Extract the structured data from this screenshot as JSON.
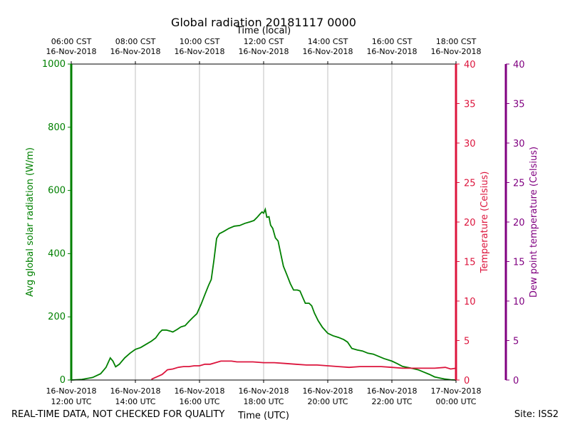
{
  "chart_data": {
    "type": "line",
    "title": "Global radiation 20181117 0000",
    "xlabel_top": "Time (local)",
    "xlabel_bottom": "Time (UTC)",
    "x_range": [
      "2018-11-16T12:00",
      "2018-11-17T00:00"
    ],
    "x_ticks_utc": [
      {
        "x": "2018-11-16T12:00",
        "line1": "16-Nov-2018",
        "line2": "12:00 UTC"
      },
      {
        "x": "2018-11-16T14:00",
        "line1": "16-Nov-2018",
        "line2": "14:00 UTC"
      },
      {
        "x": "2018-11-16T16:00",
        "line1": "16-Nov-2018",
        "line2": "16:00 UTC"
      },
      {
        "x": "2018-11-16T18:00",
        "line1": "16-Nov-2018",
        "line2": "18:00 UTC"
      },
      {
        "x": "2018-11-16T20:00",
        "line1": "16-Nov-2018",
        "line2": "20:00 UTC"
      },
      {
        "x": "2018-11-16T22:00",
        "line1": "16-Nov-2018",
        "line2": "22:00 UTC"
      },
      {
        "x": "2018-11-17T00:00",
        "line1": "17-Nov-2018",
        "line2": "00:00 UTC"
      }
    ],
    "x_ticks_local": [
      {
        "x": "2018-11-16T12:00",
        "line1": "06:00 CST",
        "line2": "16-Nov-2018"
      },
      {
        "x": "2018-11-16T14:00",
        "line1": "08:00 CST",
        "line2": "16-Nov-2018"
      },
      {
        "x": "2018-11-16T16:00",
        "line1": "10:00 CST",
        "line2": "16-Nov-2018"
      },
      {
        "x": "2018-11-16T18:00",
        "line1": "12:00 CST",
        "line2": "16-Nov-2018"
      },
      {
        "x": "2018-11-16T20:00",
        "line1": "14:00 CST",
        "line2": "16-Nov-2018"
      },
      {
        "x": "2018-11-16T22:00",
        "line1": "16:00 CST",
        "line2": "16-Nov-2018"
      },
      {
        "x": "2018-11-17T00:00",
        "line1": "18:00 CST",
        "line2": "16-Nov-2018"
      }
    ],
    "grid": "vertical",
    "axes": {
      "radiation": {
        "label": "Avg global solar radiation (W/m)",
        "ylim": [
          0,
          1000
        ],
        "ticks": [
          0,
          200,
          400,
          600,
          800,
          1000
        ],
        "color": "#008000"
      },
      "temperature": {
        "label": "Temperature (Celsius)",
        "ylim": [
          0,
          40
        ],
        "ticks": [
          0,
          5,
          10,
          15,
          20,
          25,
          30,
          35,
          40
        ],
        "color": "#dc143c"
      },
      "dewpoint": {
        "label": "Dew point temperature (Celsius)",
        "ylim": [
          0,
          40
        ],
        "ticks": [
          0,
          5,
          10,
          15,
          20,
          25,
          30,
          35,
          40
        ],
        "color": "#800080"
      }
    },
    "series": [
      {
        "axis": "radiation",
        "color": "#008000",
        "points": [
          [
            "2018-11-16T12:00",
            0
          ],
          [
            "2018-11-16T12:20",
            2
          ],
          [
            "2018-11-16T12:40",
            8
          ],
          [
            "2018-11-16T12:55",
            20
          ],
          [
            "2018-11-16T13:05",
            40
          ],
          [
            "2018-11-16T13:13",
            70
          ],
          [
            "2018-11-16T13:18",
            60
          ],
          [
            "2018-11-16T13:23",
            42
          ],
          [
            "2018-11-16T13:30",
            50
          ],
          [
            "2018-11-16T13:40",
            70
          ],
          [
            "2018-11-16T13:50",
            85
          ],
          [
            "2018-11-16T14:00",
            97
          ],
          [
            "2018-11-16T14:10",
            103
          ],
          [
            "2018-11-16T14:20",
            113
          ],
          [
            "2018-11-16T14:30",
            123
          ],
          [
            "2018-11-16T14:38",
            133
          ],
          [
            "2018-11-16T14:45",
            150
          ],
          [
            "2018-11-16T14:50",
            158
          ],
          [
            "2018-11-16T14:58",
            158
          ],
          [
            "2018-11-16T15:05",
            155
          ],
          [
            "2018-11-16T15:10",
            152
          ],
          [
            "2018-11-16T15:18",
            160
          ],
          [
            "2018-11-16T15:25",
            168
          ],
          [
            "2018-11-16T15:33",
            172
          ],
          [
            "2018-11-16T15:40",
            185
          ],
          [
            "2018-11-16T15:47",
            197
          ],
          [
            "2018-11-16T15:55",
            210
          ],
          [
            "2018-11-16T16:03",
            240
          ],
          [
            "2018-11-16T16:10",
            270
          ],
          [
            "2018-11-16T16:17",
            300
          ],
          [
            "2018-11-16T16:22",
            318
          ],
          [
            "2018-11-16T16:27",
            380
          ],
          [
            "2018-11-16T16:32",
            448
          ],
          [
            "2018-11-16T16:37",
            463
          ],
          [
            "2018-11-16T16:45",
            470
          ],
          [
            "2018-11-16T16:55",
            480
          ],
          [
            "2018-11-16T17:05",
            487
          ],
          [
            "2018-11-16T17:15",
            489
          ],
          [
            "2018-11-16T17:25",
            496
          ],
          [
            "2018-11-16T17:35",
            501
          ],
          [
            "2018-11-16T17:42",
            505
          ],
          [
            "2018-11-16T17:48",
            515
          ],
          [
            "2018-11-16T17:53",
            525
          ],
          [
            "2018-11-16T17:57",
            532
          ],
          [
            "2018-11-16T18:00",
            528
          ],
          [
            "2018-11-16T18:03",
            540
          ],
          [
            "2018-11-16T18:06",
            515
          ],
          [
            "2018-11-16T18:10",
            517
          ],
          [
            "2018-11-16T18:13",
            490
          ],
          [
            "2018-11-16T18:17",
            480
          ],
          [
            "2018-11-16T18:22",
            450
          ],
          [
            "2018-11-16T18:27",
            440
          ],
          [
            "2018-11-16T18:32",
            400
          ],
          [
            "2018-11-16T18:37",
            360
          ],
          [
            "2018-11-16T18:43",
            335
          ],
          [
            "2018-11-16T18:50",
            305
          ],
          [
            "2018-11-16T18:56",
            285
          ],
          [
            "2018-11-16T19:03",
            285
          ],
          [
            "2018-11-16T19:08",
            282
          ],
          [
            "2018-11-16T19:13",
            262
          ],
          [
            "2018-11-16T19:18",
            243
          ],
          [
            "2018-11-16T19:25",
            243
          ],
          [
            "2018-11-16T19:30",
            235
          ],
          [
            "2018-11-16T19:35",
            212
          ],
          [
            "2018-11-16T19:42",
            188
          ],
          [
            "2018-11-16T19:50",
            167
          ],
          [
            "2018-11-16T20:00",
            148
          ],
          [
            "2018-11-16T20:10",
            140
          ],
          [
            "2018-11-16T20:20",
            135
          ],
          [
            "2018-11-16T20:30",
            128
          ],
          [
            "2018-11-16T20:37",
            120
          ],
          [
            "2018-11-16T20:45",
            100
          ],
          [
            "2018-11-16T20:55",
            95
          ],
          [
            "2018-11-16T21:05",
            92
          ],
          [
            "2018-11-16T21:15",
            85
          ],
          [
            "2018-11-16T21:25",
            82
          ],
          [
            "2018-11-16T21:35",
            75
          ],
          [
            "2018-11-16T21:45",
            68
          ],
          [
            "2018-11-16T22:00",
            60
          ],
          [
            "2018-11-16T22:10",
            52
          ],
          [
            "2018-11-16T22:20",
            43
          ],
          [
            "2018-11-16T22:35",
            38
          ],
          [
            "2018-11-16T22:50",
            32
          ],
          [
            "2018-11-16T23:00",
            25
          ],
          [
            "2018-11-16T23:10",
            18
          ],
          [
            "2018-11-16T23:20",
            10
          ],
          [
            "2018-11-16T23:30",
            6
          ],
          [
            "2018-11-16T23:40",
            3
          ],
          [
            "2018-11-16T23:50",
            1
          ],
          [
            "2018-11-17T00:00",
            0
          ]
        ]
      },
      {
        "axis": "temperature",
        "color": "#dc143c",
        "points": [
          [
            "2018-11-16T14:30",
            0.1
          ],
          [
            "2018-11-16T14:40",
            0.4
          ],
          [
            "2018-11-16T14:50",
            0.7
          ],
          [
            "2018-11-16T14:55",
            1.0
          ],
          [
            "2018-11-16T15:00",
            1.3
          ],
          [
            "2018-11-16T15:10",
            1.4
          ],
          [
            "2018-11-16T15:20",
            1.6
          ],
          [
            "2018-11-16T15:30",
            1.7
          ],
          [
            "2018-11-16T15:40",
            1.7
          ],
          [
            "2018-11-16T15:50",
            1.8
          ],
          [
            "2018-11-16T16:00",
            1.8
          ],
          [
            "2018-11-16T16:10",
            2.0
          ],
          [
            "2018-11-16T16:20",
            2.0
          ],
          [
            "2018-11-16T16:30",
            2.2
          ],
          [
            "2018-11-16T16:40",
            2.4
          ],
          [
            "2018-11-16T16:50",
            2.4
          ],
          [
            "2018-11-16T17:00",
            2.4
          ],
          [
            "2018-11-16T17:10",
            2.3
          ],
          [
            "2018-11-16T17:20",
            2.3
          ],
          [
            "2018-11-16T17:40",
            2.3
          ],
          [
            "2018-11-16T18:00",
            2.2
          ],
          [
            "2018-11-16T18:20",
            2.2
          ],
          [
            "2018-11-16T18:40",
            2.1
          ],
          [
            "2018-11-16T19:00",
            2.0
          ],
          [
            "2018-11-16T19:20",
            1.9
          ],
          [
            "2018-11-16T19:40",
            1.9
          ],
          [
            "2018-11-16T20:00",
            1.8
          ],
          [
            "2018-11-16T20:20",
            1.7
          ],
          [
            "2018-11-16T20:40",
            1.6
          ],
          [
            "2018-11-16T21:00",
            1.7
          ],
          [
            "2018-11-16T21:20",
            1.7
          ],
          [
            "2018-11-16T21:40",
            1.7
          ],
          [
            "2018-11-16T22:00",
            1.6
          ],
          [
            "2018-11-16T22:20",
            1.5
          ],
          [
            "2018-11-16T22:40",
            1.5
          ],
          [
            "2018-11-16T23:00",
            1.5
          ],
          [
            "2018-11-16T23:20",
            1.5
          ],
          [
            "2018-11-16T23:40",
            1.6
          ],
          [
            "2018-11-16T23:50",
            1.4
          ],
          [
            "2018-11-17T00:00",
            1.5
          ]
        ]
      }
    ]
  },
  "footer": {
    "left": "REAL-TIME DATA, NOT CHECKED FOR QUALITY",
    "right": "Site: ISS2"
  }
}
